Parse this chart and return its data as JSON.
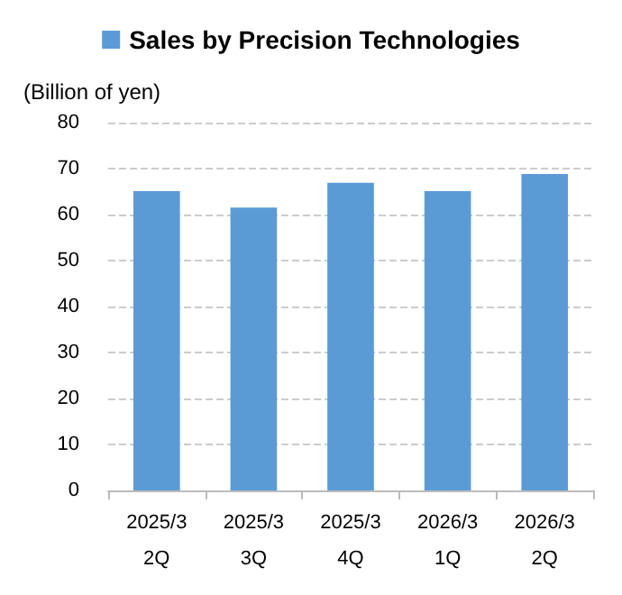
{
  "chart_data": {
    "type": "bar",
    "ylabel": "(Billion of yen)",
    "categories": [
      "2025/3\n2Q",
      "2025/3\n3Q",
      "2025/3\n4Q",
      "2026/3\n1Q",
      "2026/3\n2Q"
    ],
    "series": [
      {
        "name": "Sales by Precision Technologies",
        "color": "#5b9bd5",
        "values": [
          65.1,
          61.5,
          66.9,
          65.1,
          68.8
        ]
      }
    ],
    "ylim": [
      0,
      80
    ],
    "yticks": [
      0,
      10,
      20,
      30,
      40,
      50,
      60,
      70,
      80
    ],
    "grid": "y",
    "legend": "top"
  }
}
